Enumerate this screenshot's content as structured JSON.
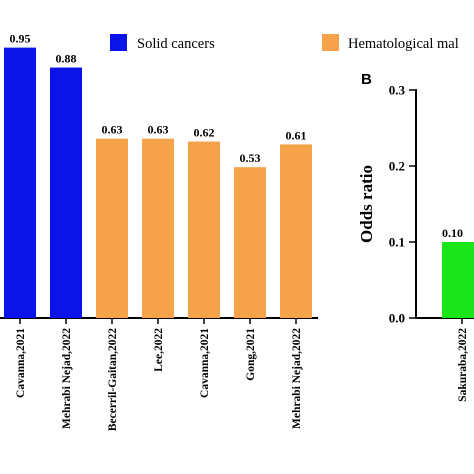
{
  "legend": [
    {
      "label": "Solid cancers",
      "color": "#0a14e8"
    },
    {
      "label": "Hematological mal",
      "color": "#f6a24a"
    }
  ],
  "chart_data": [
    {
      "type": "bar",
      "panel": "",
      "categories": [
        "Cavanna,2021",
        "Mehrabi Nejad,2022",
        "Becerril-Gaitan,2022",
        "Lee,2022",
        "Cavanna,2021",
        "Gong,2021",
        "Mehrabi Nejad,2022"
      ],
      "values": [
        0.95,
        0.88,
        0.63,
        0.63,
        0.62,
        0.53,
        0.61
      ],
      "value_labels": [
        "0.95",
        "0.88",
        "0.63",
        "0.63",
        "0.62",
        "0.53",
        "0.61"
      ],
      "groups": [
        "Solid cancers",
        "Solid cancers",
        "Hematological mal",
        "Hematological mal",
        "Hematological mal",
        "Hematological mal",
        "Hematological mal"
      ],
      "colors": [
        "#0a14e8",
        "#0a14e8",
        "#f6a24a",
        "#f6a24a",
        "#f6a24a",
        "#f6a24a",
        "#f6a24a"
      ],
      "ylim": [
        0,
        1.04
      ]
    },
    {
      "type": "bar",
      "panel": "B",
      "ylabel": "Odds ratio",
      "yticks": [
        "0.0",
        "0.1",
        "0.2",
        "0.3"
      ],
      "ylim": [
        0,
        0.3
      ],
      "categories": [
        "Sakuraba,2022"
      ],
      "values": [
        0.1
      ],
      "value_labels": [
        "0.10"
      ],
      "colors": [
        "#19e619"
      ]
    }
  ]
}
